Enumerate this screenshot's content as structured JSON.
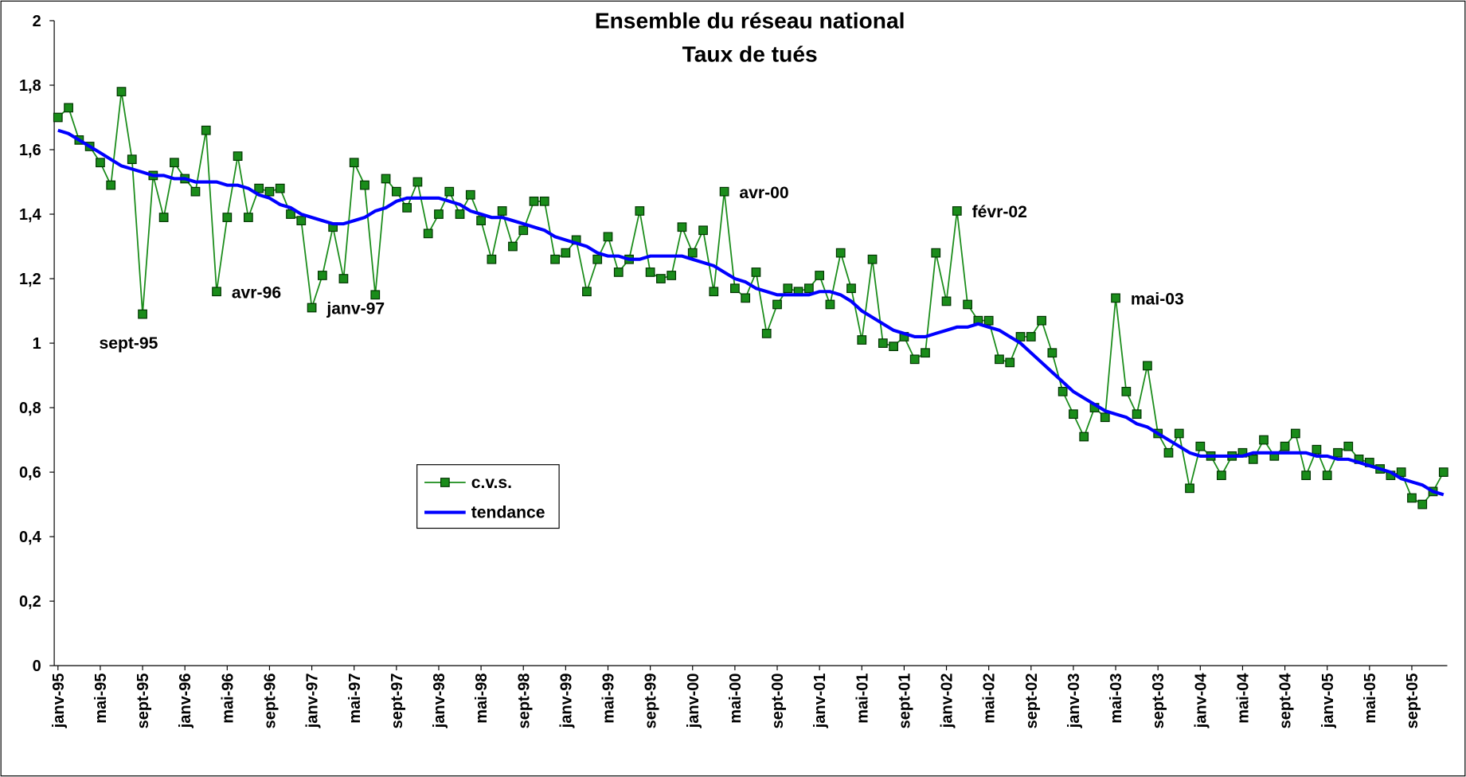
{
  "chart_data": {
    "type": "line",
    "title": "Ensemble du réseau national",
    "subtitle": "Taux de tués",
    "categories": [
      "janv-95",
      null,
      null,
      null,
      "mai-95",
      null,
      null,
      null,
      "sept-95",
      null,
      null,
      null,
      "janv-96",
      null,
      null,
      null,
      "mai-96",
      null,
      null,
      null,
      "sept-96",
      null,
      null,
      null,
      "janv-97",
      null,
      null,
      null,
      "mai-97",
      null,
      null,
      null,
      "sept-97",
      null,
      null,
      null,
      "janv-98",
      null,
      null,
      null,
      "mai-98",
      null,
      null,
      null,
      "sept-98",
      null,
      null,
      null,
      "janv-99",
      null,
      null,
      null,
      "mai-99",
      null,
      null,
      null,
      "sept-99",
      null,
      null,
      null,
      "janv-00",
      null,
      null,
      null,
      "mai-00",
      null,
      null,
      null,
      "sept-00",
      null,
      null,
      null,
      "janv-01",
      null,
      null,
      null,
      "mai-01",
      null,
      null,
      null,
      "sept-01",
      null,
      null,
      null,
      "janv-02",
      null,
      null,
      null,
      "mai-02",
      null,
      null,
      null,
      "sept-02",
      null,
      null,
      null,
      "janv-03",
      null,
      null,
      null,
      "mai-03",
      null,
      null,
      null,
      "sept-03",
      null,
      null,
      null,
      "janv-04",
      null,
      null,
      null,
      "mai-04",
      null,
      null,
      null,
      "sept-04",
      null,
      null,
      null,
      "janv-05",
      null,
      null,
      null,
      "mai-05",
      null,
      null,
      null,
      "sept-05",
      null,
      null,
      null
    ],
    "series": [
      {
        "name": "c.v.s.",
        "color": "#1a8c1a",
        "marker": "square",
        "values": [
          1.7,
          1.73,
          1.63,
          1.61,
          1.56,
          1.49,
          1.78,
          1.57,
          1.09,
          1.52,
          1.39,
          1.56,
          1.51,
          1.47,
          1.66,
          1.16,
          1.39,
          1.58,
          1.39,
          1.48,
          1.47,
          1.48,
          1.4,
          1.38,
          1.11,
          1.21,
          1.36,
          1.2,
          1.56,
          1.49,
          1.15,
          1.51,
          1.47,
          1.42,
          1.5,
          1.34,
          1.4,
          1.47,
          1.4,
          1.46,
          1.38,
          1.26,
          1.41,
          1.3,
          1.35,
          1.44,
          1.44,
          1.26,
          1.28,
          1.32,
          1.16,
          1.26,
          1.33,
          1.22,
          1.26,
          1.41,
          1.22,
          1.2,
          1.21,
          1.36,
          1.28,
          1.35,
          1.16,
          1.47,
          1.17,
          1.14,
          1.22,
          1.03,
          1.12,
          1.17,
          1.16,
          1.17,
          1.21,
          1.12,
          1.28,
          1.17,
          1.01,
          1.26,
          1.0,
          0.99,
          1.02,
          0.95,
          0.97,
          1.28,
          1.13,
          1.41,
          1.12,
          1.07,
          1.07,
          0.95,
          0.94,
          1.02,
          1.02,
          1.07,
          0.97,
          0.85,
          0.78,
          0.71,
          0.8,
          0.77,
          1.14,
          0.85,
          0.78,
          0.93,
          0.72,
          0.66,
          0.72,
          0.55,
          0.68,
          0.65,
          0.59,
          0.65,
          0.66,
          0.64,
          0.7,
          0.65,
          0.68,
          0.72,
          0.59,
          0.67,
          0.59,
          0.66,
          0.68,
          0.64,
          0.63,
          0.61,
          0.59,
          0.6,
          0.52,
          0.5,
          0.54,
          0.6
        ]
      },
      {
        "name": "tendance",
        "color": "#0000ff",
        "values": [
          1.66,
          1.65,
          1.63,
          1.61,
          1.59,
          1.57,
          1.55,
          1.54,
          1.53,
          1.52,
          1.52,
          1.51,
          1.51,
          1.5,
          1.5,
          1.5,
          1.49,
          1.49,
          1.48,
          1.46,
          1.45,
          1.43,
          1.42,
          1.4,
          1.39,
          1.38,
          1.37,
          1.37,
          1.38,
          1.39,
          1.41,
          1.42,
          1.44,
          1.45,
          1.45,
          1.45,
          1.45,
          1.44,
          1.43,
          1.41,
          1.4,
          1.39,
          1.39,
          1.38,
          1.37,
          1.36,
          1.35,
          1.33,
          1.32,
          1.31,
          1.3,
          1.28,
          1.27,
          1.27,
          1.26,
          1.26,
          1.27,
          1.27,
          1.27,
          1.27,
          1.26,
          1.25,
          1.24,
          1.22,
          1.2,
          1.19,
          1.17,
          1.16,
          1.15,
          1.15,
          1.15,
          1.15,
          1.16,
          1.16,
          1.15,
          1.13,
          1.1,
          1.08,
          1.06,
          1.04,
          1.03,
          1.02,
          1.02,
          1.03,
          1.04,
          1.05,
          1.05,
          1.06,
          1.05,
          1.04,
          1.02,
          1.0,
          0.97,
          0.94,
          0.91,
          0.88,
          0.85,
          0.83,
          0.81,
          0.79,
          0.78,
          0.77,
          0.75,
          0.74,
          0.72,
          0.7,
          0.68,
          0.66,
          0.65,
          0.65,
          0.65,
          0.65,
          0.65,
          0.66,
          0.66,
          0.66,
          0.66,
          0.66,
          0.66,
          0.65,
          0.65,
          0.64,
          0.64,
          0.63,
          0.62,
          0.61,
          0.6,
          0.58,
          0.57,
          0.56,
          0.54,
          0.53
        ]
      }
    ],
    "annotations": [
      {
        "text": "sept-95",
        "point": 8
      },
      {
        "text": "avr-96",
        "point": 15
      },
      {
        "text": "janv-97",
        "point": 24
      },
      {
        "text": "avr-00",
        "point": 63
      },
      {
        "text": "févr-02",
        "point": 85
      },
      {
        "text": "mai-03",
        "point": 100
      }
    ],
    "ylim": [
      0,
      2
    ],
    "yticks": [
      0,
      {
        "value": 0.2,
        "label": "0,2"
      },
      {
        "value": 0.4,
        "label": "0,4"
      },
      {
        "value": 0.6,
        "label": "0,6"
      },
      {
        "value": 0.8,
        "label": "0,8"
      },
      1,
      {
        "value": 1.2,
        "label": "1,2"
      },
      {
        "value": 1.4,
        "label": "1,4"
      },
      {
        "value": 1.6,
        "label": "1,6"
      },
      {
        "value": 1.8,
        "label": "1,8"
      },
      2
    ],
    "grid": false,
    "legend": "center-left"
  }
}
